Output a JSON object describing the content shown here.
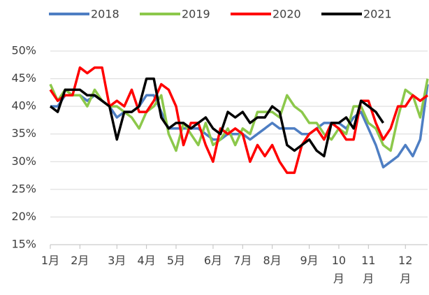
{
  "chart_data": {
    "type": "line",
    "categories": [
      "1月",
      null,
      null,
      null,
      "2月",
      null,
      null,
      null,
      null,
      "3月",
      null,
      null,
      null,
      "4月",
      null,
      null,
      null,
      "5月",
      null,
      null,
      null,
      null,
      "6月",
      null,
      null,
      null,
      "7月",
      null,
      null,
      null,
      "8月",
      null,
      null,
      null,
      null,
      "9月",
      null,
      null,
      null,
      "10月",
      null,
      null,
      null,
      "11月",
      null,
      null,
      null,
      null,
      "12月",
      null,
      null,
      null
    ],
    "series": [
      {
        "name": "2018",
        "color": "#4e7ec3",
        "values": [
          40,
          40,
          42,
          42,
          42,
          41,
          42,
          41,
          40,
          38,
          39,
          39,
          40,
          42,
          42,
          39,
          36,
          36,
          36,
          36,
          36,
          35,
          34,
          34,
          35,
          35,
          35,
          34,
          35,
          36,
          37,
          36,
          36,
          36,
          35,
          35,
          36,
          37,
          37,
          37,
          36,
          38,
          39,
          36,
          33,
          29,
          30,
          31,
          33,
          31,
          34,
          44
        ]
      },
      {
        "name": "2019",
        "color": "#8cc84b",
        "values": [
          44,
          41,
          43,
          42,
          42,
          40,
          43,
          41,
          40,
          40,
          39,
          38,
          36,
          39,
          40,
          42,
          35,
          32,
          37,
          35,
          33,
          37,
          33,
          34,
          36,
          33,
          36,
          35,
          39,
          39,
          39,
          38,
          42,
          40,
          39,
          37,
          37,
          35,
          34,
          36,
          35,
          40,
          40,
          37,
          36,
          33,
          32,
          38,
          43,
          42,
          38,
          45
        ]
      },
      {
        "name": "2020",
        "color": "#ff0000",
        "values": [
          43,
          41,
          42,
          42,
          47,
          46,
          47,
          47,
          40,
          41,
          40,
          43,
          39,
          39,
          41,
          44,
          43,
          40,
          33,
          37,
          37,
          33,
          30,
          36,
          35,
          36,
          35,
          30,
          33,
          31,
          33,
          30,
          28,
          28,
          33,
          35,
          36,
          34,
          37,
          36,
          34,
          34,
          41,
          41,
          37,
          34,
          36,
          40,
          40,
          42,
          41,
          42
        ]
      },
      {
        "name": "2021",
        "color": "#000000",
        "values": [
          40,
          39,
          43,
          43,
          43,
          42,
          42,
          41,
          40,
          34,
          39,
          39,
          40,
          45,
          45,
          38,
          36,
          37,
          37,
          36,
          37,
          38,
          36,
          35,
          39,
          38,
          39,
          37,
          38,
          38,
          40,
          39,
          33,
          32,
          33,
          34,
          32,
          31,
          37,
          37,
          38,
          36,
          41,
          40,
          39,
          37,
          null,
          null,
          null,
          null,
          null,
          null
        ]
      }
    ],
    "ylim": [
      15,
      50
    ],
    "yticks": [
      {
        "value": 15,
        "label": "15%"
      },
      {
        "value": 20,
        "label": "20%"
      },
      {
        "value": 25,
        "label": "25%"
      },
      {
        "value": 30,
        "label": "30%"
      },
      {
        "value": 35,
        "label": "35%"
      },
      {
        "value": 40,
        "label": "40%"
      },
      {
        "value": 45,
        "label": "45%"
      },
      {
        "value": 50,
        "label": "50%"
      }
    ],
    "grid": true,
    "legend": "top"
  }
}
